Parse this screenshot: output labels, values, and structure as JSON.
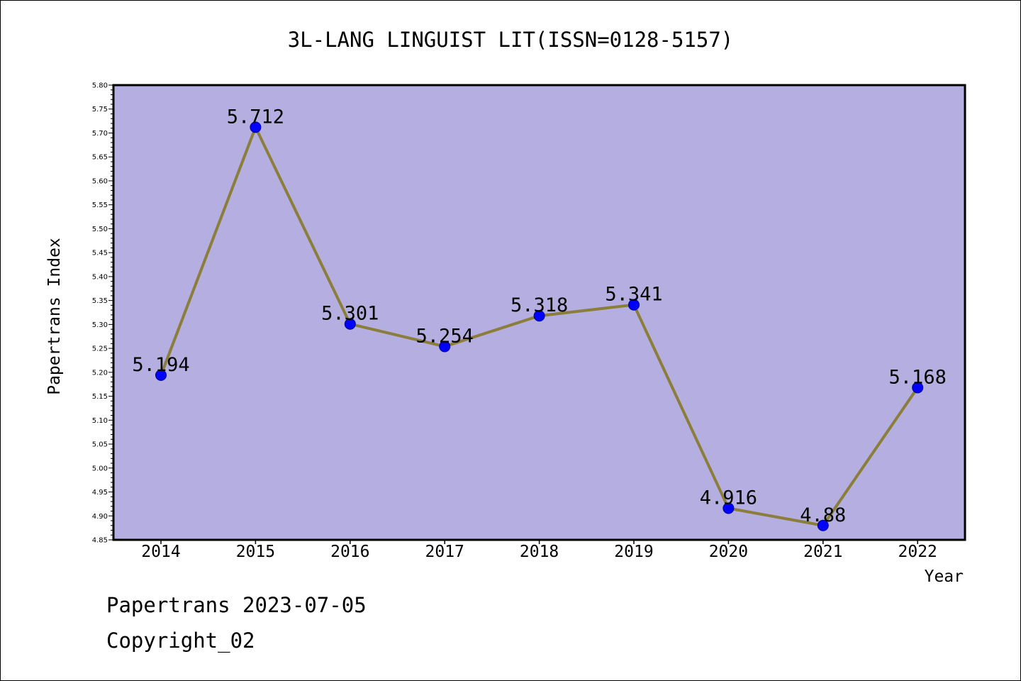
{
  "chart_data": {
    "type": "line",
    "title": "3L-LANG LINGUIST LIT(ISSN=0128-5157)",
    "xlabel": "Year",
    "ylabel": "Papertrans Index",
    "categories": [
      "2014",
      "2015",
      "2016",
      "2017",
      "2018",
      "2019",
      "2020",
      "2021",
      "2022"
    ],
    "series": [
      {
        "values": [
          5.194,
          5.712,
          5.301,
          5.254,
          5.318,
          5.341,
          4.916,
          4.88,
          5.168
        ],
        "data_labels": [
          "5.194",
          "5.712",
          "5.301",
          "5.254",
          "5.318",
          "5.341",
          "4.916",
          "4.88",
          "5.168"
        ]
      }
    ],
    "ylim": [
      4.85,
      5.8
    ],
    "yticks": [
      "4.85",
      "4.90",
      "4.95",
      "5.00",
      "5.05",
      "5.10",
      "5.15",
      "5.20",
      "5.25",
      "5.30",
      "5.35",
      "5.40",
      "5.45",
      "5.50",
      "5.55",
      "5.60",
      "5.65",
      "5.70",
      "5.75",
      "5.80"
    ],
    "grid": false,
    "colors": {
      "plot_background": "#b5aee0",
      "line": "#8b7d3a",
      "marker": "#0000ff"
    }
  },
  "footer": {
    "date_text": "Papertrans 2023-07-05",
    "copyright_text": "Copyright_02"
  }
}
